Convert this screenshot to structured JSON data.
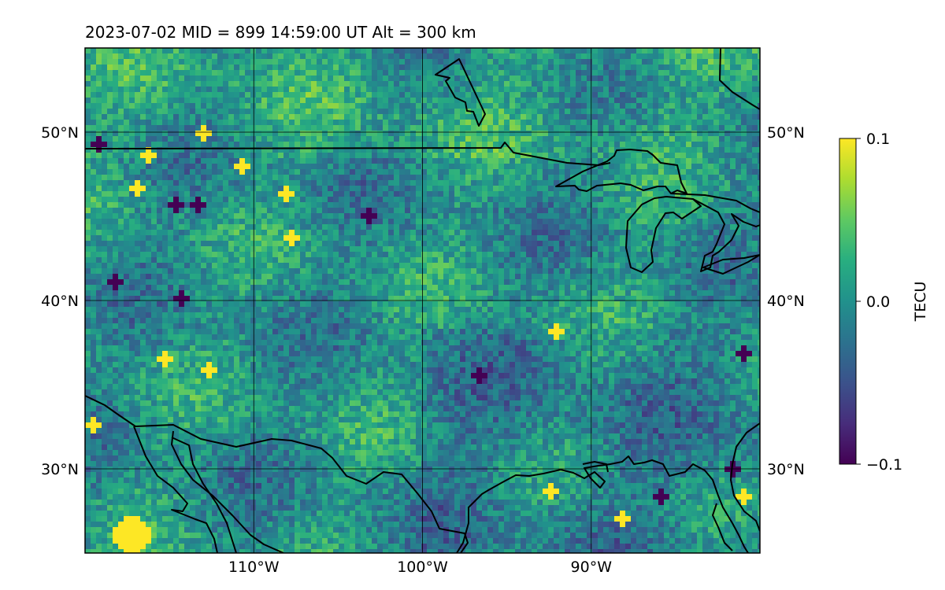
{
  "title": "2023-07-02  MID = 899    14:59:00  UT  Alt = 300 km",
  "map": {
    "lon_range": [
      -120,
      -80
    ],
    "lat_range": [
      25,
      55
    ],
    "grid": true,
    "lon_ticks": [
      {
        "value": -110,
        "label": "110°W"
      },
      {
        "value": -100,
        "label": "100°W"
      },
      {
        "value": -90,
        "label": "90°W"
      }
    ],
    "lat_ticks": [
      {
        "value": 50,
        "label": "50°N"
      },
      {
        "value": 40,
        "label": "40°N"
      },
      {
        "value": 30,
        "label": "30°N"
      }
    ],
    "field": "TEC perturbation (TECU), viridis colormap, mostly near 0 with scattered positive and negative cells",
    "hotspots": [
      {
        "lon": -113,
        "lat": 50.0,
        "value": 0.1
      },
      {
        "lon": -110.8,
        "lat": 48.1,
        "value": 0.1
      },
      {
        "lon": -116.3,
        "lat": 48.6,
        "value": 0.1
      },
      {
        "lon": -116.8,
        "lat": 46.7,
        "value": 0.1
      },
      {
        "lon": -108.0,
        "lat": 46.2,
        "value": 0.1
      },
      {
        "lon": -107.7,
        "lat": 43.6,
        "value": 0.1
      },
      {
        "lon": -115.3,
        "lat": 36.5,
        "value": 0.1
      },
      {
        "lon": -112.5,
        "lat": 36.0,
        "value": 0.1
      },
      {
        "lon": -119.6,
        "lat": 32.6,
        "value": 0.1
      },
      {
        "lon": -117.3,
        "lat": 25.9,
        "value": 0.1
      },
      {
        "lon": -92.4,
        "lat": 28.6,
        "value": 0.1
      },
      {
        "lon": -92.2,
        "lat": 38.0,
        "value": 0.1
      },
      {
        "lon": -88.2,
        "lat": 27.0,
        "value": 0.1
      },
      {
        "lon": -81.0,
        "lat": 28.5,
        "value": 0.1
      },
      {
        "lon": -119.2,
        "lat": 49.3,
        "value": -0.1
      },
      {
        "lon": -113.3,
        "lat": 45.6,
        "value": -0.1
      },
      {
        "lon": -114.5,
        "lat": 45.7,
        "value": -0.1
      },
      {
        "lon": -103.3,
        "lat": 45.0,
        "value": -0.1
      },
      {
        "lon": -114.3,
        "lat": 40.0,
        "value": -0.1
      },
      {
        "lon": -118.2,
        "lat": 41.0,
        "value": -0.1
      },
      {
        "lon": -96.5,
        "lat": 35.5,
        "value": -0.1
      },
      {
        "lon": -81.7,
        "lat": 30.0,
        "value": -0.1
      },
      {
        "lon": -86.0,
        "lat": 28.4,
        "value": -0.1
      },
      {
        "lon": -80.8,
        "lat": 36.7,
        "value": -0.1
      }
    ]
  },
  "colorbar": {
    "colormap": "viridis",
    "label": "TECU",
    "min": -0.1,
    "max": 0.1,
    "ticks": [
      {
        "value": 0.1,
        "label": "0.1"
      },
      {
        "value": 0.0,
        "label": "0.0"
      },
      {
        "value": -0.1,
        "label": "−0.1"
      }
    ]
  }
}
